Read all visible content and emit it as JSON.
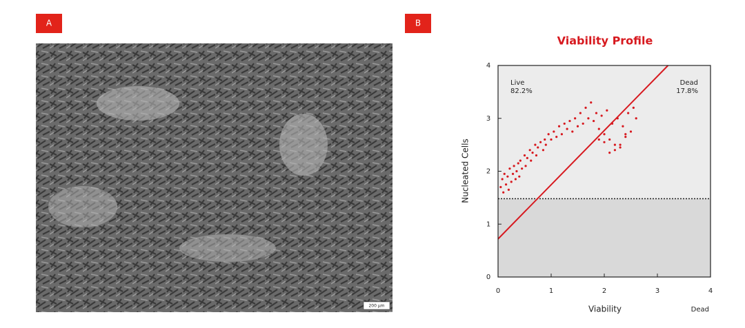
{
  "panels": [
    "A",
    "B"
  ],
  "image": {
    "scale_bar": "200 µm"
  },
  "chart_data": {
    "type": "scatter",
    "title": "Viability Profile",
    "x_label": "Viability",
    "y_label": "Nucleated Cells",
    "annotations": [
      "Live",
      "82.2%",
      "Dead",
      "17.8%",
      "Dead"
    ],
    "xlim": [
      0,
      4
    ],
    "ylim": [
      0,
      4
    ],
    "xticks": [
      0,
      1,
      2,
      3,
      4
    ],
    "yticks": [
      0,
      1,
      2,
      3,
      4
    ],
    "color": "#d7191f",
    "threshold": 1.48,
    "gate_line": {
      "x": [
        0,
        3.2
      ],
      "y": [
        0.72,
        4
      ]
    },
    "x": [
      0.05,
      0.08,
      0.1,
      0.12,
      0.15,
      0.18,
      0.2,
      0.22,
      0.25,
      0.28,
      0.3,
      0.33,
      0.35,
      0.38,
      0.4,
      0.42,
      0.45,
      0.5,
      0.52,
      0.55,
      0.6,
      0.62,
      0.65,
      0.7,
      0.72,
      0.75,
      0.8,
      0.85,
      0.88,
      0.9,
      0.95,
      1.0,
      1.05,
      1.1,
      1.15,
      1.2,
      1.25,
      1.3,
      1.35,
      1.4,
      1.45,
      1.5,
      1.55,
      1.6,
      1.65,
      1.7,
      1.75,
      1.8,
      1.85,
      1.9,
      1.95,
      2.0,
      2.05,
      2.1,
      2.15,
      2.2,
      2.25,
      2.3,
      2.35,
      2.4,
      2.45,
      2.5,
      2.55,
      2.6,
      2.1,
      2.2,
      2.3,
      1.9,
      2.0,
      2.4
    ],
    "values": [
      1.7,
      1.85,
      1.6,
      1.95,
      1.75,
      1.9,
      1.65,
      2.05,
      1.8,
      1.95,
      2.1,
      1.85,
      2.0,
      2.15,
      1.9,
      2.2,
      2.05,
      2.3,
      2.1,
      2.25,
      2.4,
      2.2,
      2.35,
      2.5,
      2.3,
      2.45,
      2.55,
      2.4,
      2.6,
      2.5,
      2.7,
      2.6,
      2.75,
      2.65,
      2.85,
      2.7,
      2.9,
      2.8,
      2.95,
      2.75,
      3.0,
      2.85,
      3.1,
      2.9,
      3.2,
      3.0,
      3.3,
      2.95,
      3.1,
      2.8,
      3.05,
      2.7,
      3.15,
      2.6,
      2.9,
      2.5,
      3.0,
      2.45,
      2.85,
      2.65,
      3.1,
      2.75,
      3.2,
      3.0,
      2.35,
      2.4,
      2.5,
      2.6,
      2.55,
      2.7
    ]
  }
}
